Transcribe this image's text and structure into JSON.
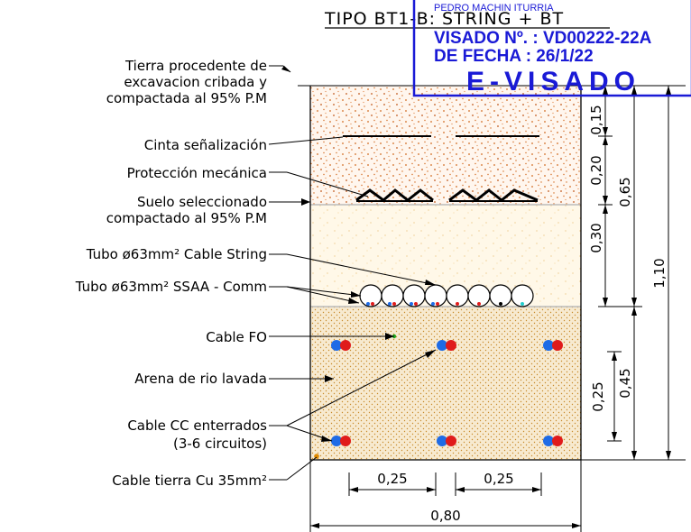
{
  "title": "TIPO BT1-B: STRING + BT",
  "stamp": {
    "name": "PEDRO MACHIN ITURRIA",
    "visado_line": "VISADO Nº. : VD00222-22A",
    "fecha_line": "DE FECHA  : 26/1/22",
    "evisado": "E-VISADO",
    "color": "#1a1ad6"
  },
  "labels": {
    "tierra_1": "Tierra procedente de",
    "tierra_2": "excavacion cribada y",
    "tierra_3": "compactada al 95% P.M",
    "cinta": "Cinta señalización",
    "proteccion": "Protección mecánica",
    "suelo_1": "Suelo seleccionado",
    "suelo_2": "compactado al 95% P.M",
    "tubo_string": "Tubo ø63mm² Cable String",
    "tubo_ssaa": "Tubo ø63mm² SSAA - Comm",
    "cable_fo": "Cable FO",
    "arena": "Arena de rio lavada",
    "cable_cc_1": "Cable CC enterrados",
    "cable_cc_2": "(3-6 circuitos)",
    "cable_tierra": "Cable tierra Cu 35mm²"
  },
  "dimensions": {
    "d015": "0,15",
    "d020": "0,20",
    "d030": "0,30",
    "d065": "0,65",
    "d025_v": "0,25",
    "d045": "0,45",
    "d110": "1,10",
    "d025_left": "0,25",
    "d025_right": "0,25",
    "d080": "0,80"
  },
  "colors": {
    "soil_dots": "#d2691e",
    "sand_dots": "#c88a2a",
    "blue_cable": "#1e6be6",
    "red_cable": "#e01b1b",
    "fo_cable": "#22aa22",
    "earth_cable": "#e08a00"
  }
}
